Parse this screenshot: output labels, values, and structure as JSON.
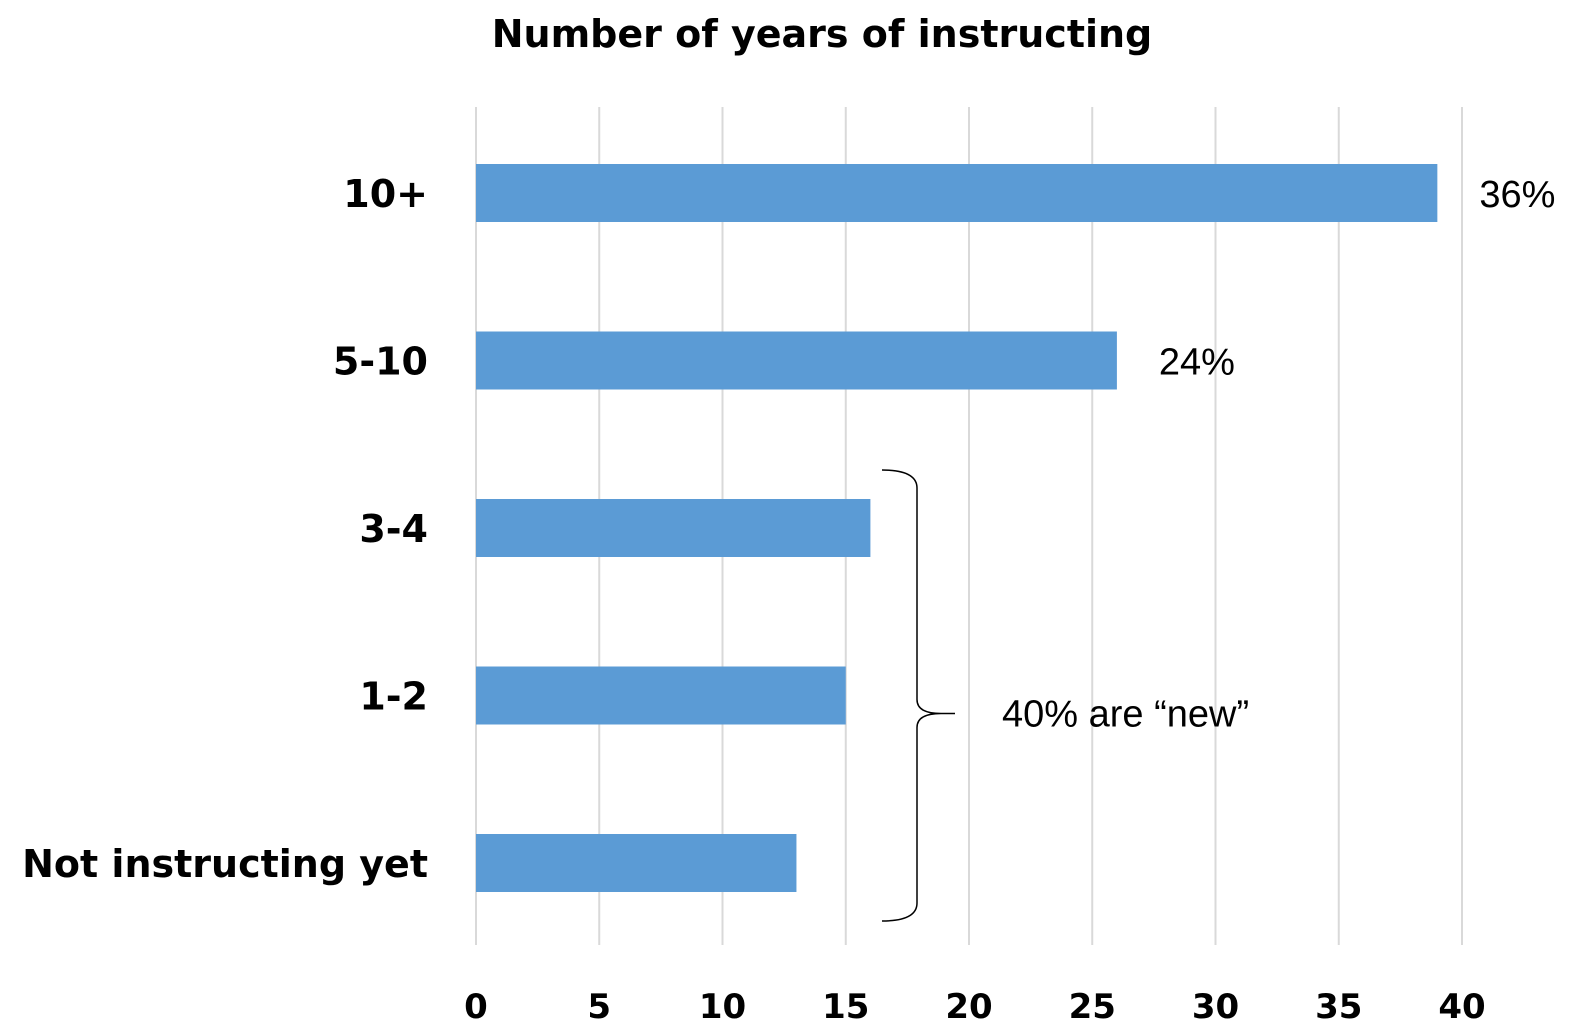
{
  "chart_data": {
    "type": "bar",
    "orientation": "horizontal",
    "title": "Number of years of instructing",
    "xlabel": "",
    "ylabel": "",
    "categories": [
      "10+",
      "5-10",
      "3-4",
      "1-2",
      "Not instructing yet"
    ],
    "values": [
      39,
      26,
      16,
      15,
      13
    ],
    "data_labels": [
      "36%",
      "24%",
      "",
      "",
      ""
    ],
    "xlim": [
      0,
      40
    ],
    "x_ticks": [
      0,
      5,
      10,
      15,
      20,
      25,
      30,
      35,
      40
    ],
    "grid": true,
    "legend": "none",
    "bar_color": "#5b9bd5",
    "annotation": {
      "text": "40% are “new”",
      "spans_categories": [
        "3-4",
        "1-2",
        "Not instructing yet"
      ]
    }
  }
}
